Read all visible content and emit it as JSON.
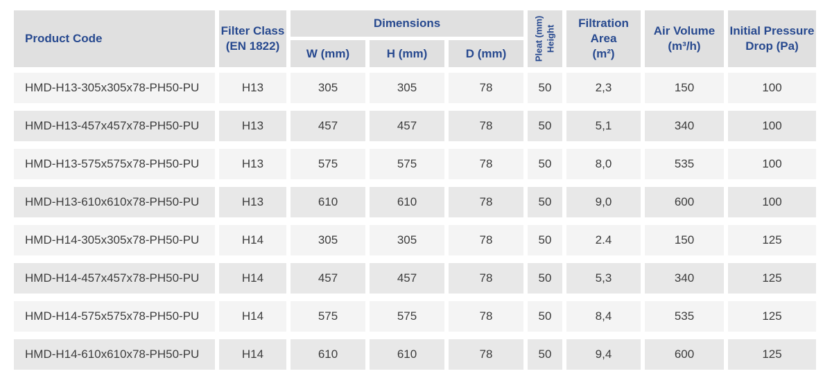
{
  "colors": {
    "header_bg": "#e0e0e0",
    "header_text": "#27498f",
    "row_light": "#f4f4f4",
    "row_dark": "#e8e8e8",
    "cell_text": "#3c3c3c",
    "page_bg": "#ffffff"
  },
  "table": {
    "headers": {
      "product_code": "Product Code",
      "filter_class_line1": "Filter Class",
      "filter_class_line2": "(EN 1822)",
      "dimensions_group": "Dimensions",
      "w": "W (mm)",
      "h": "H (mm)",
      "d": "D (mm)",
      "pleat_line1": "Pleat (mm)",
      "pleat_line2": "Height",
      "filtration_line1": "Filtration",
      "filtration_line2": "Area",
      "filtration_line3": "(m²)",
      "air_volume_line1": "Air Volume",
      "air_volume_line2": "(m³/h)",
      "pressure_line1": "Initial Pressure",
      "pressure_line2": "Drop (Pa)"
    },
    "rows": [
      {
        "code": "HMD-H13-305x305x78-PH50-PU",
        "filter_class": "H13",
        "w": "305",
        "h": "305",
        "d": "78",
        "pleat": "50",
        "area": "2,3",
        "air_volume": "150",
        "pressure_drop": "100"
      },
      {
        "code": "HMD-H13-457x457x78-PH50-PU",
        "filter_class": "H13",
        "w": "457",
        "h": "457",
        "d": "78",
        "pleat": "50",
        "area": "5,1",
        "air_volume": "340",
        "pressure_drop": "100"
      },
      {
        "code": "HMD-H13-575x575x78-PH50-PU",
        "filter_class": "H13",
        "w": "575",
        "h": "575",
        "d": "78",
        "pleat": "50",
        "area": "8,0",
        "air_volume": "535",
        "pressure_drop": "100"
      },
      {
        "code": "HMD-H13-610x610x78-PH50-PU",
        "filter_class": "H13",
        "w": "610",
        "h": "610",
        "d": "78",
        "pleat": "50",
        "area": "9,0",
        "air_volume": "600",
        "pressure_drop": "100"
      },
      {
        "code": "HMD-H14-305x305x78-PH50-PU",
        "filter_class": "H14",
        "w": "305",
        "h": "305",
        "d": "78",
        "pleat": "50",
        "area": "2.4",
        "air_volume": "150",
        "pressure_drop": "125"
      },
      {
        "code": "HMD-H14-457x457x78-PH50-PU",
        "filter_class": "H14",
        "w": "457",
        "h": "457",
        "d": "78",
        "pleat": "50",
        "area": "5,3",
        "air_volume": "340",
        "pressure_drop": "125"
      },
      {
        "code": "HMD-H14-575x575x78-PH50-PU",
        "filter_class": "H14",
        "w": "575",
        "h": "575",
        "d": "78",
        "pleat": "50",
        "area": "8,4",
        "air_volume": "535",
        "pressure_drop": "125"
      },
      {
        "code": "HMD-H14-610x610x78-PH50-PU",
        "filter_class": "H14",
        "w": "610",
        "h": "610",
        "d": "78",
        "pleat": "50",
        "area": "9,4",
        "air_volume": "600",
        "pressure_drop": "125"
      }
    ]
  }
}
